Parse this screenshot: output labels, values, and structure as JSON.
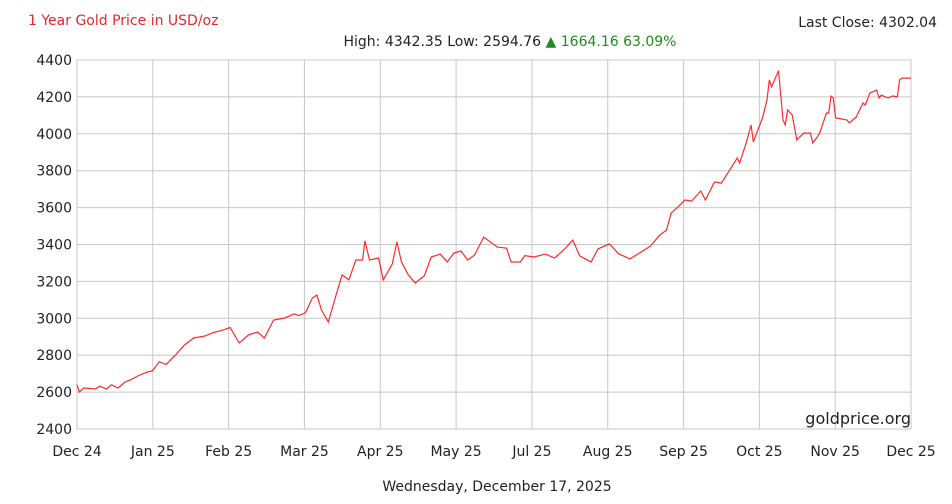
{
  "header": {
    "title": "1 Year Gold Price in USD/oz",
    "last_close_label": "Last Close: 4302.04",
    "high_low": "High: 4342.35 Low: 2594.76",
    "change": "1664.16 63.09%",
    "change_icon": "triangle-up-icon",
    "change_color": "#1f8c1f"
  },
  "footer": {
    "date": "Wednesday, December 17, 2025"
  },
  "chart_data": {
    "type": "line",
    "title": "1 Year Gold Price in USD/oz",
    "xlabel": "",
    "ylabel": "",
    "ylim": [
      2400,
      4400
    ],
    "xlim": [
      "2024-12-17",
      "2025-12-17"
    ],
    "yticks": [
      "4400",
      "4200",
      "4000",
      "3800",
      "3600",
      "3400",
      "3200",
      "3000",
      "2800",
      "2600",
      "2400"
    ],
    "xticks": [
      "Dec 24",
      "Jan 25",
      "Feb 25",
      "Mar 25",
      "Apr 25",
      "May 25",
      "Jul 25",
      "Aug 25",
      "Sep 25",
      "Oct 25",
      "Nov 25",
      "Dec 25"
    ],
    "grid": true,
    "line_color": "#ff2a2a",
    "watermark": "goldprice.org",
    "series": [
      {
        "x": [
          "2024-12-17",
          "2024-12-18",
          "2024-12-20",
          "2024-12-25",
          "2024-12-27",
          "2024-12-30",
          "2025-01-01",
          "2025-01-04",
          "2025-01-07",
          "2025-01-10",
          "2025-01-13",
          "2025-01-17",
          "2025-01-19",
          "2025-01-22",
          "2025-01-25",
          "2025-01-29",
          "2025-02-02",
          "2025-02-06",
          "2025-02-11",
          "2025-02-14",
          "2025-02-19",
          "2025-02-22",
          "2025-02-26",
          "2025-03-02",
          "2025-03-06",
          "2025-03-09",
          "2025-03-13",
          "2025-03-18",
          "2025-03-22",
          "2025-03-24",
          "2025-03-27",
          "2025-03-30",
          "2025-04-01",
          "2025-04-03",
          "2025-04-06",
          "2025-04-09",
          "2025-04-12",
          "2025-04-15",
          "2025-04-18",
          "2025-04-21",
          "2025-04-22",
          "2025-04-24",
          "2025-04-28",
          "2025-04-30",
          "2025-05-04",
          "2025-05-06",
          "2025-05-08",
          "2025-05-11",
          "2025-05-14",
          "2025-05-18",
          "2025-05-21",
          "2025-05-25",
          "2025-05-28",
          "2025-05-31",
          "2025-06-03",
          "2025-06-06",
          "2025-06-09",
          "2025-06-13",
          "2025-06-19",
          "2025-06-23",
          "2025-06-25",
          "2025-06-29",
          "2025-07-01",
          "2025-07-05",
          "2025-07-10",
          "2025-07-14",
          "2025-07-18",
          "2025-07-22",
          "2025-07-25",
          "2025-07-30",
          "2025-08-02",
          "2025-08-07",
          "2025-08-11",
          "2025-08-16",
          "2025-08-21",
          "2025-08-25",
          "2025-08-29",
          "2025-09-01",
          "2025-09-03",
          "2025-09-06",
          "2025-09-09",
          "2025-09-12",
          "2025-09-16",
          "2025-09-18",
          "2025-09-22",
          "2025-09-25",
          "2025-10-02",
          "2025-10-03",
          "2025-10-06",
          "2025-10-08",
          "2025-10-09",
          "2025-10-13",
          "2025-10-15",
          "2025-10-16",
          "2025-10-17",
          "2025-10-20",
          "2025-10-22",
          "2025-10-23",
          "2025-10-24",
          "2025-10-26",
          "2025-10-28",
          "2025-10-31",
          "2025-11-03",
          "2025-11-04",
          "2025-11-06",
          "2025-11-07",
          "2025-11-10",
          "2025-11-11",
          "2025-11-12",
          "2025-11-13",
          "2025-11-14",
          "2025-11-19",
          "2025-11-20",
          "2025-11-23",
          "2025-11-26",
          "2025-11-27",
          "2025-11-29",
          "2025-12-02",
          "2025-12-03",
          "2025-12-04",
          "2025-12-07",
          "2025-12-09",
          "2025-12-11",
          "2025-12-12",
          "2025-12-13",
          "2025-12-17"
        ],
        "y": [
          2640,
          2600,
          2622,
          2617,
          2632,
          2617,
          2640,
          2622,
          2655,
          2670,
          2690,
          2710,
          2715,
          2765,
          2750,
          2800,
          2855,
          2893,
          2904,
          2920,
          2937,
          2950,
          2866,
          2910,
          2925,
          2893,
          2990,
          3002,
          3024,
          3015,
          3030,
          3110,
          3126,
          3045,
          2980,
          3110,
          3235,
          3208,
          3316,
          3316,
          3420,
          3316,
          3327,
          3208,
          3295,
          3414,
          3305,
          3235,
          3192,
          3230,
          3332,
          3348,
          3305,
          3354,
          3365,
          3316,
          3343,
          3440,
          3386,
          3380,
          3305,
          3305,
          3340,
          3332,
          3348,
          3327,
          3370,
          3424,
          3338,
          3305,
          3376,
          3403,
          3350,
          3322,
          3360,
          3392,
          3451,
          3478,
          3570,
          3603,
          3641,
          3636,
          3690,
          3641,
          3739,
          3733,
          3869,
          3842,
          3956,
          4048,
          3956,
          4086,
          4183,
          4292,
          4254,
          4342,
          4075,
          4048,
          4129,
          4102,
          3967,
          4004,
          4004,
          3950,
          3983,
          4004,
          4113,
          4113,
          4205,
          4194,
          4086,
          4075,
          4059,
          4091,
          4167,
          4156,
          4221,
          4237,
          4194,
          4210,
          4194,
          4205,
          4200,
          4292,
          4302,
          4302
        ]
      }
    ]
  }
}
